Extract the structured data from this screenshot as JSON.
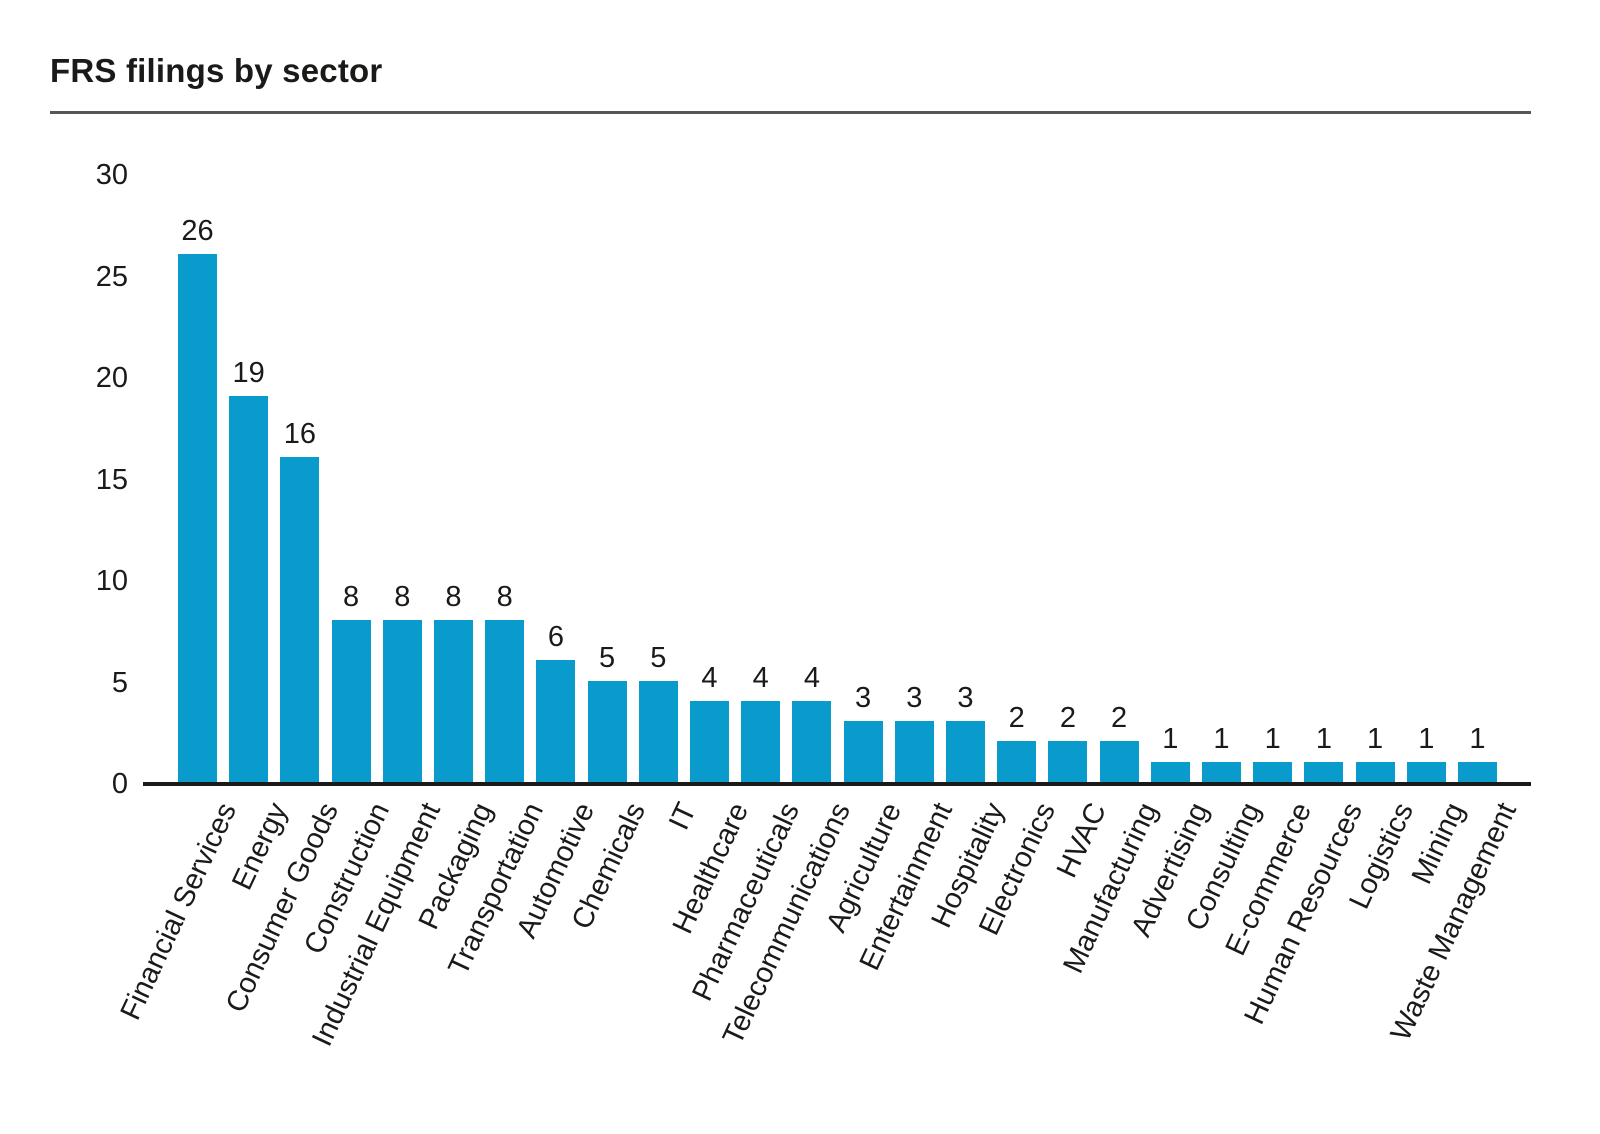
{
  "page": {
    "title": "FRS filings by sector"
  },
  "colors": {
    "bar": "#0a9bcd",
    "text": "#1a1a18",
    "axis": "#1a1a1a",
    "divider": "#55565a",
    "background": "#ffffff"
  },
  "chart_data": {
    "type": "bar",
    "title": "FRS filings by sector",
    "categories": [
      "Financial Services",
      "Energy",
      "Consumer Goods",
      "Construction",
      "Industrial Equipment",
      "Packaging",
      "Transportation",
      "Automotive",
      "Chemicals",
      "IT",
      "Healthcare",
      "Pharmaceuticals",
      "Telecommunications",
      "Agriculture",
      "Entertainment",
      "Hospitality",
      "Electronics",
      "HVAC",
      "Manufacturing",
      "Advertising",
      "Consulting",
      "E-commerce",
      "Human Resources",
      "Logistics",
      "Mining",
      "Waste Management"
    ],
    "values": [
      26,
      19,
      16,
      8,
      8,
      8,
      8,
      6,
      5,
      5,
      4,
      4,
      4,
      3,
      3,
      3,
      2,
      2,
      2,
      1,
      1,
      1,
      1,
      1,
      1,
      1
    ],
    "bar_value_labels": true,
    "xlabel": "",
    "ylabel": "",
    "y_ticks": [
      0,
      5,
      10,
      15,
      20,
      25,
      30
    ],
    "ylim": [
      0,
      30
    ],
    "grid": false,
    "legend": false,
    "x_tick_rotation_deg": 65
  }
}
